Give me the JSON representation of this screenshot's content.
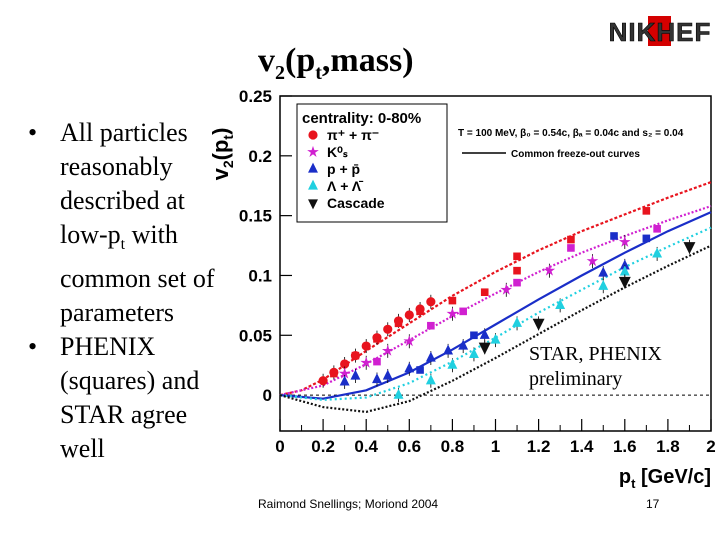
{
  "logo": {
    "text": "NIKHEF"
  },
  "slide": {
    "title_main": "v",
    "title_sub": "2",
    "title_rest": "(p",
    "title_sub2": "t",
    "title_end": ",mass)"
  },
  "bullets": [
    {
      "marker": "•",
      "text": "All particles reasonably described at low-p",
      "sub": "t",
      "text_after": " with common set of parameters"
    },
    {
      "marker": "•",
      "text": "PHENIX (squares) and STAR agree well"
    }
  ],
  "footer": {
    "credit": "Raimond Snellings; Moriond 2004",
    "page": "17"
  },
  "annotation": {
    "line1": "STAR, PHENIX",
    "line2": "preliminary"
  },
  "chart_data": {
    "type": "scatter",
    "xlabel": "p",
    "xlabel_sub": "t",
    "xlabel_unit": "[GeV/c]",
    "ylabel": "v",
    "ylabel_sub": "2",
    "ylabel_rest": "(p",
    "ylabel_sub2": "t",
    "ylabel_end": ")",
    "xlim": [
      0,
      2
    ],
    "ylim": [
      -0.03,
      0.25
    ],
    "x_ticks": [
      0,
      0.2,
      0.4,
      0.6,
      0.8,
      1,
      1.2,
      1.4,
      1.6,
      1.8,
      2
    ],
    "x_tick_labels": [
      "0",
      "0.2",
      "0.4",
      "0.6",
      "0.8",
      "1",
      "1.2",
      "1.4",
      "1.6",
      "1.8",
      "2"
    ],
    "y_ticks": [
      0,
      0.05,
      0.1,
      0.15,
      0.2,
      0.25
    ],
    "y_tick_labels": [
      "0",
      "0.05",
      "0.1",
      "0.15",
      "0.2",
      "0.25"
    ],
    "legend_title": "centrality: 0-80%",
    "legend_location": "top-left",
    "params_text": "T = 100 MeV, β₀ = 0.54c, βₐ = 0.04c and s₂ = 0.04",
    "curves_label": "Common freeze-out curves",
    "series": [
      {
        "name": "π⁺ + π⁻",
        "color": "#e8141e",
        "marker": "circle",
        "star_points": [
          [
            0.2,
            0.012
          ],
          [
            0.25,
            0.019
          ],
          [
            0.3,
            0.026
          ],
          [
            0.35,
            0.033
          ],
          [
            0.4,
            0.041
          ],
          [
            0.45,
            0.048
          ],
          [
            0.5,
            0.055
          ],
          [
            0.55,
            0.062
          ],
          [
            0.6,
            0.067
          ],
          [
            0.65,
            0.072
          ],
          [
            0.7,
            0.078
          ]
        ],
        "phenix_points": [
          [
            0.25,
            0.018
          ],
          [
            0.35,
            0.033
          ],
          [
            0.45,
            0.047
          ],
          [
            0.55,
            0.06
          ],
          [
            0.65,
            0.07
          ],
          [
            0.8,
            0.079
          ],
          [
            0.95,
            0.086
          ],
          [
            1.1,
            0.104
          ],
          [
            1.1,
            0.116
          ],
          [
            1.35,
            0.13
          ],
          [
            1.7,
            0.154
          ]
        ],
        "curve": [
          [
            0,
            0
          ],
          [
            0.1,
            0.004
          ],
          [
            0.2,
            0.013
          ],
          [
            0.4,
            0.037
          ],
          [
            0.6,
            0.06
          ],
          [
            0.8,
            0.083
          ],
          [
            1,
            0.103
          ],
          [
            1.2,
            0.121
          ],
          [
            1.4,
            0.137
          ],
          [
            1.6,
            0.151
          ],
          [
            1.8,
            0.165
          ],
          [
            2,
            0.178
          ]
        ]
      },
      {
        "name": "K⁰ₛ",
        "color": "#d020d0",
        "marker": "star",
        "star_points": [
          [
            0.3,
            0.018
          ],
          [
            0.4,
            0.027
          ],
          [
            0.5,
            0.037
          ],
          [
            0.6,
            0.045
          ],
          [
            0.8,
            0.068
          ],
          [
            1.05,
            0.088
          ],
          [
            1.25,
            0.104
          ],
          [
            1.45,
            0.112
          ],
          [
            1.6,
            0.128
          ]
        ],
        "phenix_points": [
          [
            0.45,
            0.028
          ],
          [
            0.7,
            0.058
          ],
          [
            0.85,
            0.07
          ],
          [
            1.1,
            0.094
          ],
          [
            1.35,
            0.123
          ],
          [
            1.75,
            0.139
          ]
        ],
        "curve": [
          [
            0,
            0
          ],
          [
            0.2,
            0.008
          ],
          [
            0.4,
            0.026
          ],
          [
            0.6,
            0.046
          ],
          [
            0.8,
            0.066
          ],
          [
            1,
            0.085
          ],
          [
            1.2,
            0.103
          ],
          [
            1.4,
            0.119
          ],
          [
            1.6,
            0.133
          ],
          [
            1.8,
            0.146
          ],
          [
            2,
            0.158
          ]
        ]
      },
      {
        "name": "p + p̄",
        "color": "#1a2ec8",
        "marker": "triangle-up",
        "star_points": [
          [
            0.3,
            0.011
          ],
          [
            0.35,
            0.016
          ],
          [
            0.45,
            0.013
          ],
          [
            0.5,
            0.016
          ],
          [
            0.6,
            0.022
          ],
          [
            0.7,
            0.031
          ],
          [
            0.78,
            0.037
          ],
          [
            0.85,
            0.041
          ],
          [
            0.95,
            0.05
          ],
          [
            1.5,
            0.102
          ],
          [
            1.6,
            0.108
          ]
        ],
        "phenix_points": [
          [
            0.65,
            0.021
          ],
          [
            0.9,
            0.05
          ],
          [
            1.55,
            0.133
          ],
          [
            1.7,
            0.131
          ]
        ],
        "curve": [
          [
            0,
            0
          ],
          [
            0.2,
            -0.003
          ],
          [
            0.4,
            0.004
          ],
          [
            0.6,
            0.019
          ],
          [
            0.8,
            0.038
          ],
          [
            1,
            0.059
          ],
          [
            1.2,
            0.08
          ],
          [
            1.4,
            0.1
          ],
          [
            1.6,
            0.119
          ],
          [
            1.8,
            0.137
          ],
          [
            2,
            0.153
          ]
        ]
      },
      {
        "name": "Λ + Λ̄",
        "color": "#20d0e0",
        "marker": "triangle-up",
        "star_points": [
          [
            0.55,
            0.0
          ],
          [
            0.7,
            0.012
          ],
          [
            0.8,
            0.025
          ],
          [
            0.9,
            0.034
          ],
          [
            1.0,
            0.046
          ],
          [
            1.1,
            0.06
          ],
          [
            1.3,
            0.075
          ],
          [
            1.5,
            0.091
          ],
          [
            1.6,
            0.103
          ],
          [
            1.75,
            0.118
          ]
        ],
        "phenix_points": [],
        "curve": [
          [
            0,
            0
          ],
          [
            0.2,
            -0.004
          ],
          [
            0.4,
            -0.002
          ],
          [
            0.6,
            0.01
          ],
          [
            0.8,
            0.028
          ],
          [
            1,
            0.048
          ],
          [
            1.2,
            0.069
          ],
          [
            1.4,
            0.088
          ],
          [
            1.6,
            0.107
          ],
          [
            1.8,
            0.124
          ],
          [
            2,
            0.14
          ]
        ]
      },
      {
        "name": "Cascade",
        "color": "#111111",
        "marker": "triangle-down",
        "star_points": [
          [
            0.95,
            0.04
          ],
          [
            1.2,
            0.06
          ],
          [
            1.6,
            0.095
          ],
          [
            1.9,
            0.124
          ]
        ],
        "phenix_points": [],
        "curve": [
          [
            0,
            0
          ],
          [
            0.2,
            -0.01
          ],
          [
            0.4,
            -0.014
          ],
          [
            0.6,
            -0.005
          ],
          [
            0.8,
            0.012
          ],
          [
            1,
            0.031
          ],
          [
            1.2,
            0.051
          ],
          [
            1.4,
            0.071
          ],
          [
            1.6,
            0.09
          ],
          [
            1.8,
            0.108
          ],
          [
            2,
            0.125
          ]
        ]
      }
    ]
  }
}
